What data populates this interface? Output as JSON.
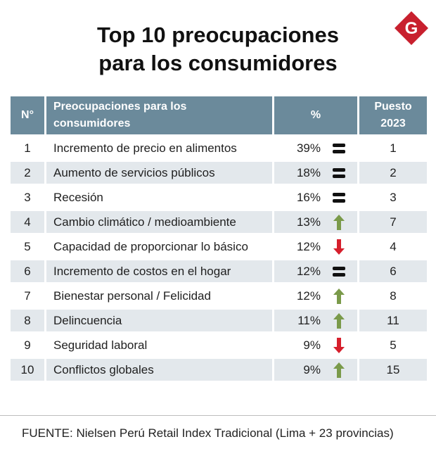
{
  "title_lines": [
    "Top 10 preocupaciones",
    "para los consumidores"
  ],
  "logo": {
    "letter": "G",
    "color": "#c8202e"
  },
  "chart_data": {
    "type": "table",
    "title": "Top 10 preocupaciones para los consumidores",
    "columns": [
      "N°",
      "Preocupaciones para los consumidores",
      "%",
      "Puesto 2023"
    ],
    "rows": [
      {
        "n": "1",
        "label": "Incremento de precio en alimentos",
        "pct": "39%",
        "trend": "equal",
        "rank2023": "1"
      },
      {
        "n": "2",
        "label": "Aumento de servicios públicos",
        "pct": "18%",
        "trend": "equal",
        "rank2023": "2"
      },
      {
        "n": "3",
        "label": "Recesión",
        "pct": "16%",
        "trend": "equal",
        "rank2023": "3"
      },
      {
        "n": "4",
        "label": "Cambio climático / medioambiente",
        "pct": "13%",
        "trend": "up",
        "rank2023": "7"
      },
      {
        "n": "5",
        "label": "Capacidad de proporcionar lo básico",
        "pct": "12%",
        "trend": "down",
        "rank2023": "4"
      },
      {
        "n": "6",
        "label": "Incremento de costos en el hogar",
        "pct": "12%",
        "trend": "equal",
        "rank2023": "6"
      },
      {
        "n": "7",
        "label": "Bienestar personal / Felicidad",
        "pct": "12%",
        "trend": "up",
        "rank2023": "8"
      },
      {
        "n": "8",
        "label": "Delincuencia",
        "pct": "11%",
        "trend": "up",
        "rank2023": "11"
      },
      {
        "n": "9",
        "label": "Seguridad laboral",
        "pct": "9%",
        "trend": "down",
        "rank2023": "5"
      },
      {
        "n": "10",
        "label": "Conflictos globales",
        "pct": "9%",
        "trend": "up",
        "rank2023": "15"
      }
    ],
    "trend_colors": {
      "up": "#7a9a4a",
      "down": "#d61f2c",
      "equal": "#111111"
    },
    "header_color": "#6b8a9b",
    "alt_row_color": "#e3e8ec"
  },
  "header": {
    "num": "N°",
    "name_lines": [
      "Preocupaciones para los",
      "consumidores"
    ],
    "pct": "%",
    "rank_lines": [
      "Puesto",
      "2023"
    ]
  },
  "footer": "FUENTE: Nielsen Perú Retail Index Tradicional (Lima + 23 provincias)"
}
